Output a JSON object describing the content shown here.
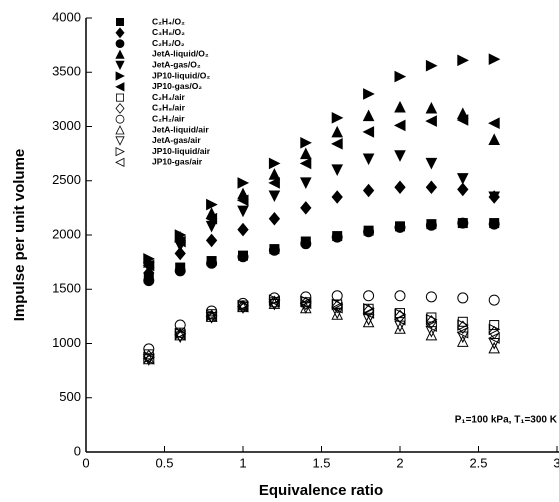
{
  "chart_data": {
    "type": "scatter",
    "x_label": "Equivalence ratio",
    "y_label": "Impulse per unit volume",
    "annotation": "P₁=100 kPa, T₁=300 K",
    "x": [
      0.4,
      0.6,
      0.8,
      1.0,
      1.2,
      1.4,
      1.6,
      1.8,
      2.0,
      2.2,
      2.4,
      2.6
    ],
    "xlim": [
      0,
      3
    ],
    "xticks": [
      0,
      0.5,
      1,
      1.5,
      2,
      2.5,
      3
    ],
    "ylim": [
      0,
      4000
    ],
    "yticks": [
      0,
      500,
      1000,
      1500,
      2000,
      2500,
      3000,
      3500,
      4000
    ],
    "legend": "upper left",
    "series": [
      {
        "name": "C₂H₄/O₂",
        "color": "#000000",
        "marker": "square",
        "filled": true,
        "values": [
          1600,
          1700,
          1760,
          1810,
          1870,
          1940,
          1990,
          2040,
          2080,
          2100,
          2110,
          2110
        ]
      },
      {
        "name": "C₃H₈/O₂",
        "color": "#000000",
        "marker": "diamond",
        "filled": true,
        "values": [
          1650,
          1830,
          1950,
          2050,
          2150,
          2250,
          2350,
          2410,
          2440,
          2440,
          2420,
          2350
        ]
      },
      {
        "name": "C₂H₂/O₂",
        "color": "#000000",
        "marker": "circle",
        "filled": true,
        "values": [
          1580,
          1670,
          1740,
          1800,
          1860,
          1920,
          1980,
          2030,
          2070,
          2090,
          2110,
          2100
        ]
      },
      {
        "name": "JetA-liquid/O₂",
        "color": "#000000",
        "marker": "up",
        "filled": true,
        "values": [
          1750,
          1980,
          2200,
          2380,
          2560,
          2750,
          2950,
          3100,
          3180,
          3170,
          3120,
          2880
        ]
      },
      {
        "name": "JetA-gas/O₂",
        "color": "#000000",
        "marker": "down",
        "filled": true,
        "values": [
          1700,
          1900,
          2080,
          2220,
          2360,
          2480,
          2600,
          2700,
          2730,
          2660,
          2520,
          2350
        ]
      },
      {
        "name": "JP10-liquid/O₂",
        "color": "#000000",
        "marker": "right",
        "filled": true,
        "values": [
          1780,
          2000,
          2280,
          2480,
          2660,
          2850,
          3080,
          3300,
          3460,
          3560,
          3610,
          3620
        ]
      },
      {
        "name": "JP10-gas/O₂",
        "color": "#000000",
        "marker": "left",
        "filled": true,
        "values": [
          1720,
          1940,
          2150,
          2320,
          2480,
          2660,
          2840,
          2950,
          3010,
          3050,
          3060,
          3030
        ]
      },
      {
        "name": "C₂H₄/air",
        "color": "#000000",
        "marker": "square",
        "filled": false,
        "values": [
          900,
          1100,
          1270,
          1350,
          1380,
          1380,
          1360,
          1320,
          1280,
          1240,
          1200,
          1170
        ]
      },
      {
        "name": "C₃H₈/air",
        "color": "#000000",
        "marker": "diamond",
        "filled": false,
        "values": [
          880,
          1080,
          1250,
          1340,
          1380,
          1370,
          1340,
          1300,
          1250,
          1200,
          1150,
          1100
        ]
      },
      {
        "name": "C₂H₂/air",
        "color": "#000000",
        "marker": "circle",
        "filled": false,
        "values": [
          950,
          1170,
          1300,
          1370,
          1420,
          1430,
          1440,
          1440,
          1440,
          1430,
          1420,
          1400
        ]
      },
      {
        "name": "JetA-liquid/air",
        "color": "#000000",
        "marker": "up",
        "filled": false,
        "values": [
          860,
          1080,
          1250,
          1340,
          1370,
          1330,
          1270,
          1200,
          1140,
          1080,
          1020,
          960
        ]
      },
      {
        "name": "JetA-gas/air",
        "color": "#000000",
        "marker": "down",
        "filled": false,
        "values": [
          850,
          1060,
          1240,
          1330,
          1360,
          1330,
          1280,
          1220,
          1160,
          1110,
          1060,
          1000
        ]
      },
      {
        "name": "JP10-liquid/air",
        "color": "#000000",
        "marker": "right",
        "filled": false,
        "values": [
          870,
          1090,
          1260,
          1350,
          1400,
          1390,
          1360,
          1320,
          1270,
          1220,
          1170,
          1130
        ]
      },
      {
        "name": "JP10-gas/air",
        "color": "#000000",
        "marker": "left",
        "filled": false,
        "values": [
          860,
          1080,
          1250,
          1340,
          1390,
          1370,
          1330,
          1280,
          1220,
          1160,
          1100,
          1050
        ]
      }
    ]
  }
}
